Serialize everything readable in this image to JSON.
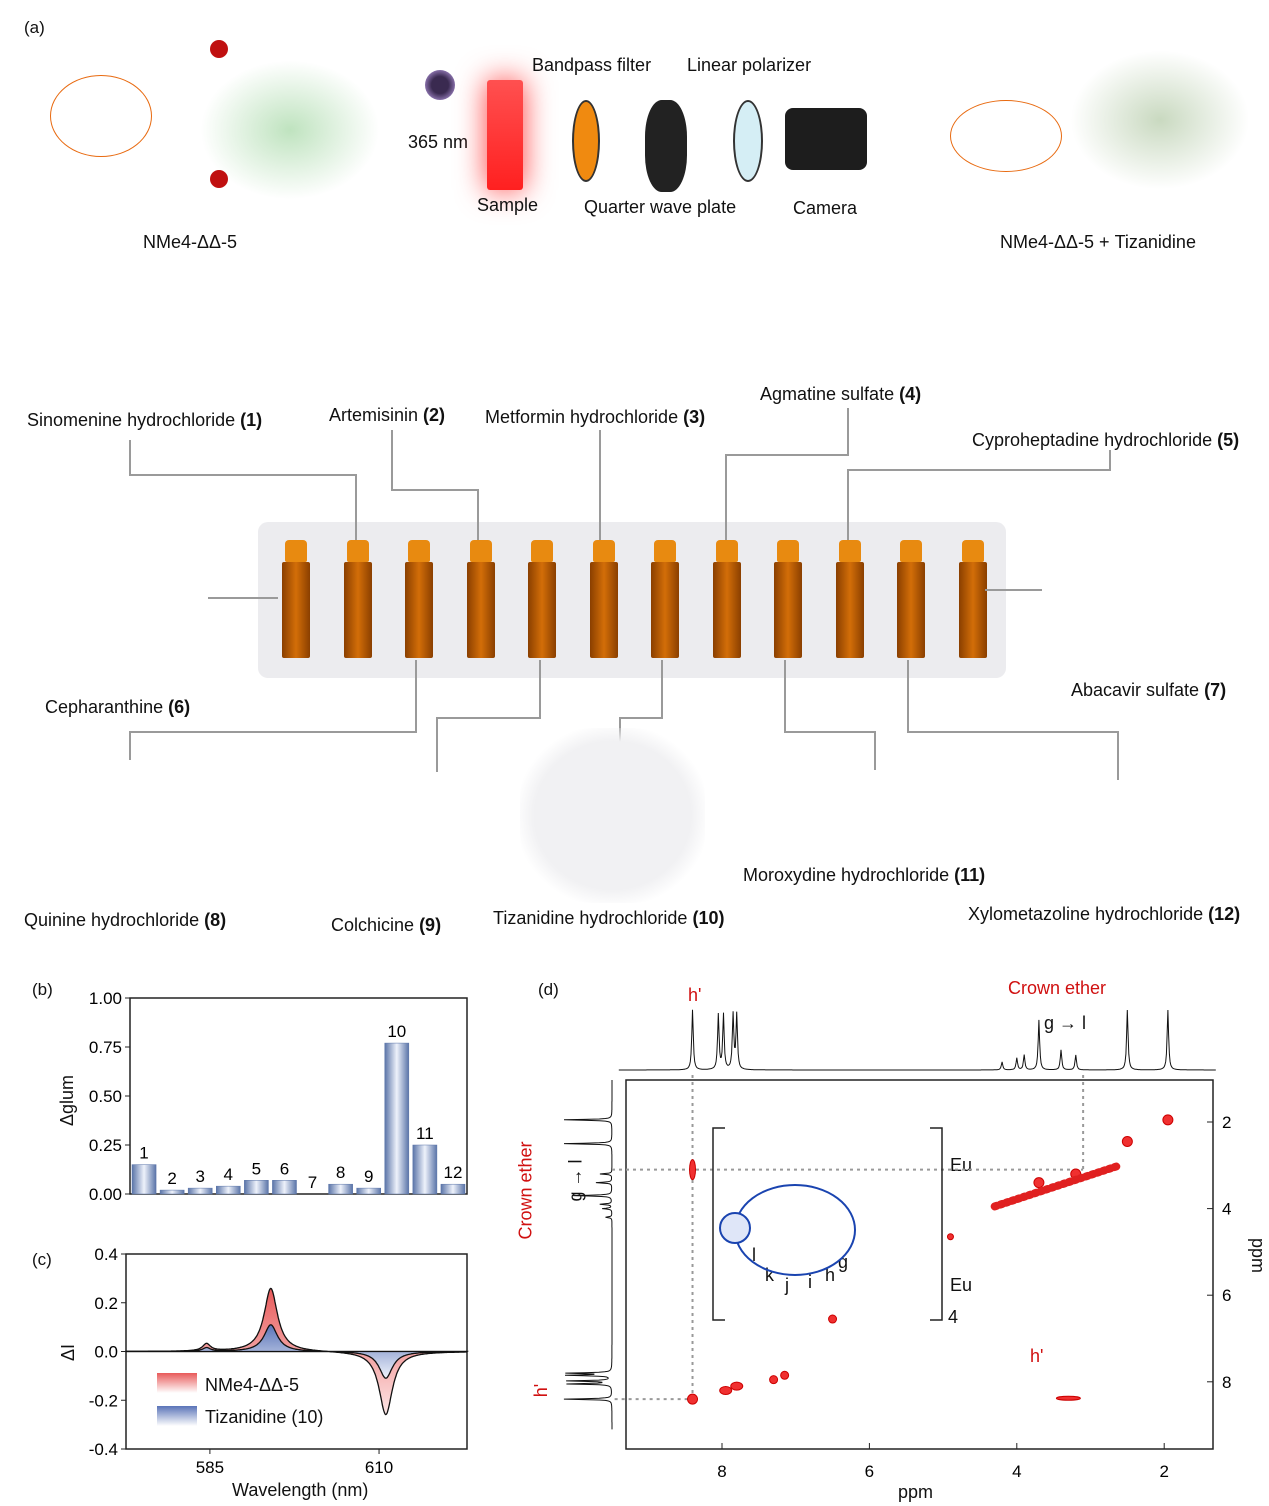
{
  "panel_a": {
    "label": "(a)",
    "left_complex": "NMe4-ΔΔ-5",
    "right_complex": "NMe4-ΔΔ-5 + Tizanidine",
    "setup": {
      "light": "365 nm",
      "sample": "Sample",
      "filter": "Bandpass filter",
      "qwp": "Quarter wave plate",
      "polarizer": "Linear polarizer",
      "camera": "Camera"
    },
    "compounds": [
      {
        "name": "Sinomenine hydrochloride",
        "num": "(1)"
      },
      {
        "name": "Artemisinin",
        "num": "(2)"
      },
      {
        "name": "Metformin hydrochloride",
        "num": "(3)"
      },
      {
        "name": "Agmatine sulfate",
        "num": "(4)"
      },
      {
        "name": "Cyproheptadine hydrochloride",
        "num": "(5)"
      },
      {
        "name": "Cepharanthine",
        "num": "(6)"
      },
      {
        "name": "Abacavir sulfate",
        "num": "(7)"
      },
      {
        "name": "Quinine hydrochloride",
        "num": "(8)"
      },
      {
        "name": "Colchicine",
        "num": "(9)"
      },
      {
        "name": "Tizanidine hydrochloride",
        "num": "(10)"
      },
      {
        "name": "Moroxydine hydrochloride",
        "num": "(11)"
      },
      {
        "name": "Xylometazoline hydrochloride",
        "num": "(12)"
      }
    ]
  },
  "chart_data": [
    {
      "type": "bar",
      "panel": "(b)",
      "ylabel": "Δglum",
      "ylim": [
        0,
        1
      ],
      "yticks": [
        "0.00",
        "0.25",
        "0.50",
        "0.75",
        "1.00"
      ],
      "categories": [
        "1",
        "2",
        "3",
        "4",
        "5",
        "6",
        "7",
        "8",
        "9",
        "10",
        "11",
        "12"
      ],
      "values": [
        0.15,
        0.02,
        0.03,
        0.04,
        0.07,
        0.07,
        0.0,
        0.05,
        0.03,
        0.77,
        0.25,
        0.05
      ],
      "color": "#5a74a8"
    },
    {
      "type": "area",
      "panel": "(c)",
      "xlabel": "Wavelength (nm)",
      "ylabel": "ΔI",
      "xlim": [
        572.6,
        623
      ],
      "ylim": [
        -0.4,
        0.4
      ],
      "xticks": [
        "585",
        "610"
      ],
      "yticks": [
        "0.4",
        "0.2",
        "0.0",
        "-0.2",
        "-0.4"
      ],
      "legend": "bottom-left",
      "series": [
        {
          "name": "NMe4-ΔΔ-5",
          "color": "#e85a5a",
          "peaks": [
            [
              584.5,
              0.03
            ],
            [
              594,
              0.26
            ],
            [
              611,
              -0.26
            ]
          ]
        },
        {
          "name": "Tizanidine (10)",
          "color": "#5a74b8",
          "peaks": [
            [
              584.5,
              0.015
            ],
            [
              594,
              0.11
            ],
            [
              611,
              -0.11
            ]
          ]
        }
      ]
    }
  ],
  "panel_d": {
    "label": "(d)",
    "xlabel": "ppm",
    "ylabel": "ppm",
    "xticks": [
      "8",
      "6",
      "4",
      "2"
    ],
    "yticks": [
      "2",
      "4",
      "6",
      "8"
    ],
    "h_prime": "h'",
    "crown_ether": "Crown ether",
    "assign": "g → l",
    "eu": "Eu",
    "count": "4",
    "letters": [
      "l",
      "k",
      "j",
      "i",
      "h",
      "g"
    ]
  }
}
